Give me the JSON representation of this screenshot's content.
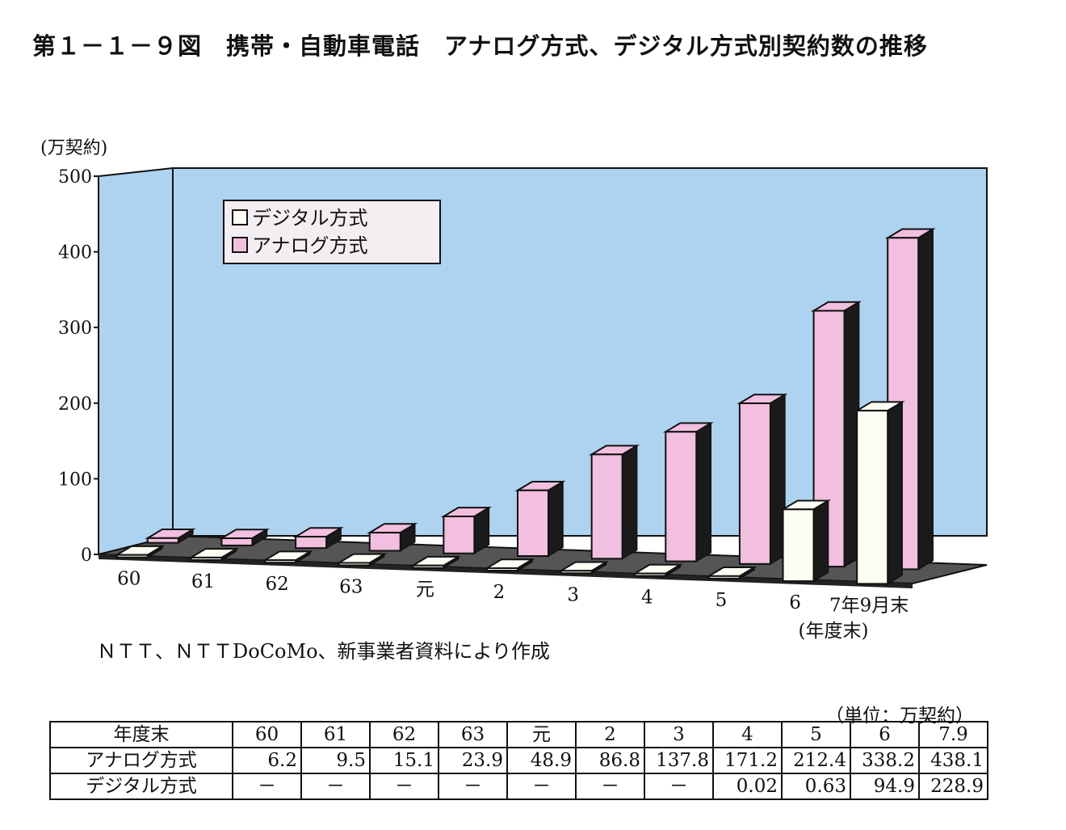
{
  "title": "第１－１－９図　携帯・自動車電話　アナログ方式、デジタル方式別契約数の推移",
  "chart_data": {
    "type": "bar",
    "ylabel": "(万契約)",
    "xlabel": "(年度末)",
    "ylim": [
      0,
      500
    ],
    "yticks": [
      "0",
      "100",
      "200",
      "300",
      "400",
      "500"
    ],
    "categories": [
      "60",
      "61",
      "62",
      "63",
      "元",
      "2",
      "3",
      "4",
      "5",
      "6",
      "7年9月末"
    ],
    "series": [
      {
        "name": "デジタル方式",
        "color": "#fdfdf4",
        "values": [
          0,
          0,
          0,
          0,
          0,
          0,
          0,
          0.02,
          0.63,
          94.9,
          228.9
        ]
      },
      {
        "name": "アナログ方式",
        "color": "#f2bfe0",
        "values": [
          6.2,
          9.5,
          15.1,
          23.9,
          48.9,
          86.8,
          137.8,
          171.2,
          212.4,
          338.2,
          438.1
        ]
      }
    ],
    "legend_position": "top-left",
    "wall_color": "#aed3f0",
    "floor_color": "#555555"
  },
  "source_note": "ＮＴＴ、ＮＴＴDoCoMo、新事業者資料により作成",
  "table": {
    "unit": "（単位：万契約）",
    "header": [
      "年度末",
      "60",
      "61",
      "62",
      "63",
      "元",
      "2",
      "3",
      "4",
      "5",
      "6",
      "7.9"
    ],
    "rows": [
      [
        "アナログ方式",
        "6.2",
        "9.5",
        "15.1",
        "23.9",
        "48.9",
        "86.8",
        "137.8",
        "171.2",
        "212.4",
        "338.2",
        "438.1"
      ],
      [
        "デジタル方式",
        "－",
        "－",
        "－",
        "－",
        "－",
        "－",
        "－",
        "0.02",
        "0.63",
        "94.9",
        "228.9"
      ]
    ]
  }
}
